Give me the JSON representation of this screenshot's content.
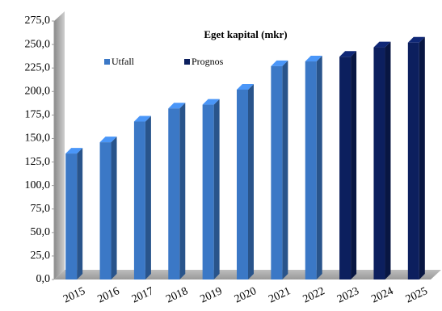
{
  "chart_data": {
    "type": "bar3d",
    "title": "Eget kapital (mkr)",
    "categories": [
      "2015",
      "2016",
      "2017",
      "2018",
      "2019",
      "2020",
      "2021",
      "2022",
      "2023",
      "2024",
      "2025"
    ],
    "series": [
      {
        "name": "Utfall",
        "color": "#3b78c6",
        "values": [
          134,
          146,
          168,
          182,
          186,
          202,
          227,
          232,
          null,
          null,
          null
        ]
      },
      {
        "name": "Prognos",
        "color": "#0c1f5e",
        "values": [
          null,
          null,
          null,
          null,
          null,
          null,
          null,
          null,
          237,
          247,
          252
        ]
      }
    ],
    "ylim": [
      0,
      275
    ],
    "yticks": [
      {
        "value": 0,
        "label": "0,0"
      },
      {
        "value": 25,
        "label": "25,0"
      },
      {
        "value": 50,
        "label": "50,0"
      },
      {
        "value": 75,
        "label": "75,0"
      },
      {
        "value": 100,
        "label": "100,0"
      },
      {
        "value": 125,
        "label": "125,0"
      },
      {
        "value": 150,
        "label": "150,0"
      },
      {
        "value": 175,
        "label": "175,0"
      },
      {
        "value": 200,
        "label": "200,0"
      },
      {
        "value": 225,
        "label": "225,0"
      },
      {
        "value": 250,
        "label": "250,0"
      },
      {
        "value": 275,
        "label": "275,0"
      }
    ],
    "grid": false
  }
}
